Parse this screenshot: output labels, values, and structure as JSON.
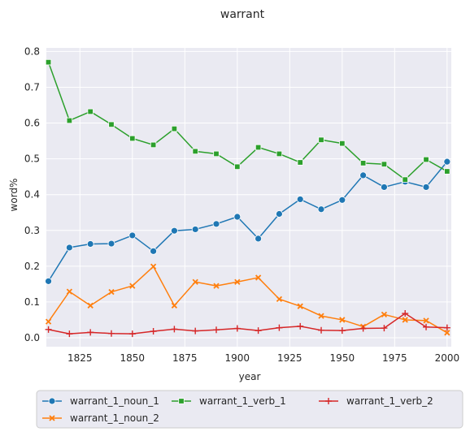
{
  "chart_data": {
    "type": "line",
    "title": "warrant",
    "xlabel": "year",
    "ylabel": "word%",
    "xlim": [
      1809,
      2002
    ],
    "ylim": [
      -0.025,
      0.81
    ],
    "xticks": [
      1825,
      1850,
      1875,
      1900,
      1925,
      1950,
      1975,
      2000
    ],
    "yticks": [
      0.0,
      0.1,
      0.2,
      0.3,
      0.4,
      0.5,
      0.6,
      0.7,
      0.8
    ],
    "xtick_labels": [
      "1825",
      "1850",
      "1875",
      "1900",
      "1925",
      "1950",
      "1975",
      "2000"
    ],
    "ytick_labels": [
      "0.0",
      "0.1",
      "0.2",
      "0.3",
      "0.4",
      "0.5",
      "0.6",
      "0.7",
      "0.8"
    ],
    "grid": true,
    "legend_position": "below",
    "x": [
      1810,
      1820,
      1830,
      1840,
      1850,
      1860,
      1870,
      1880,
      1890,
      1900,
      1910,
      1920,
      1930,
      1940,
      1950,
      1960,
      1970,
      1980,
      1990,
      2000
    ],
    "series": [
      {
        "name": "warrant_1_noun_1",
        "color": "#1f77b4",
        "marker": "circle",
        "values": [
          0.158,
          0.252,
          0.262,
          0.263,
          0.286,
          0.242,
          0.299,
          0.303,
          0.318,
          0.338,
          0.277,
          0.346,
          0.387,
          0.359,
          0.385,
          0.454,
          0.421,
          0.436,
          0.421,
          0.492
        ]
      },
      {
        "name": "warrant_1_noun_2",
        "color": "#ff7f0e",
        "marker": "x",
        "values": [
          0.045,
          0.129,
          0.09,
          0.128,
          0.145,
          0.199,
          0.09,
          0.156,
          0.145,
          0.156,
          0.168,
          0.108,
          0.088,
          0.061,
          0.05,
          0.031,
          0.065,
          0.05,
          0.048,
          0.014
        ]
      },
      {
        "name": "warrant_1_verb_1",
        "color": "#2ca02c",
        "marker": "square",
        "values": [
          0.77,
          0.607,
          0.632,
          0.596,
          0.557,
          0.539,
          0.584,
          0.521,
          0.514,
          0.478,
          0.532,
          0.514,
          0.49,
          0.553,
          0.543,
          0.488,
          0.485,
          0.442,
          0.498,
          0.465
        ]
      },
      {
        "name": "warrant_1_verb_2",
        "color": "#d62728",
        "marker": "plus",
        "values": [
          0.023,
          0.011,
          0.015,
          0.012,
          0.011,
          0.018,
          0.024,
          0.019,
          0.022,
          0.026,
          0.02,
          0.028,
          0.032,
          0.021,
          0.02,
          0.026,
          0.027,
          0.068,
          0.03,
          0.028
        ]
      }
    ],
    "legend_order": [
      "warrant_1_noun_1",
      "warrant_1_verb_1",
      "warrant_1_verb_2",
      "warrant_1_noun_2"
    ]
  }
}
